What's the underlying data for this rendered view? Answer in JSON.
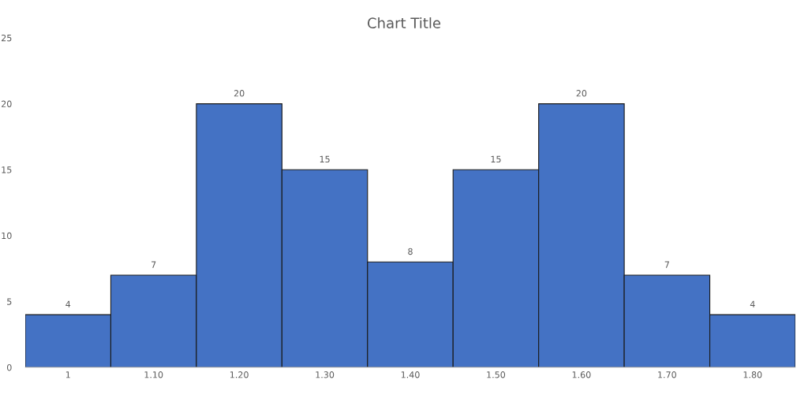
{
  "chart_data": {
    "type": "bar",
    "title": "Chart Title",
    "categories": [
      "1",
      "1.10",
      "1.20",
      "1.30",
      "1.40",
      "1.50",
      "1.60",
      "1.70",
      "1.80"
    ],
    "values": [
      4,
      7,
      20,
      15,
      8,
      15,
      20,
      7,
      4
    ],
    "color": "#4472c4",
    "ylim": [
      0,
      25
    ],
    "yticks": [
      0,
      5,
      10,
      15,
      20,
      25
    ],
    "data_labels": true,
    "grid": false,
    "legend": false
  }
}
